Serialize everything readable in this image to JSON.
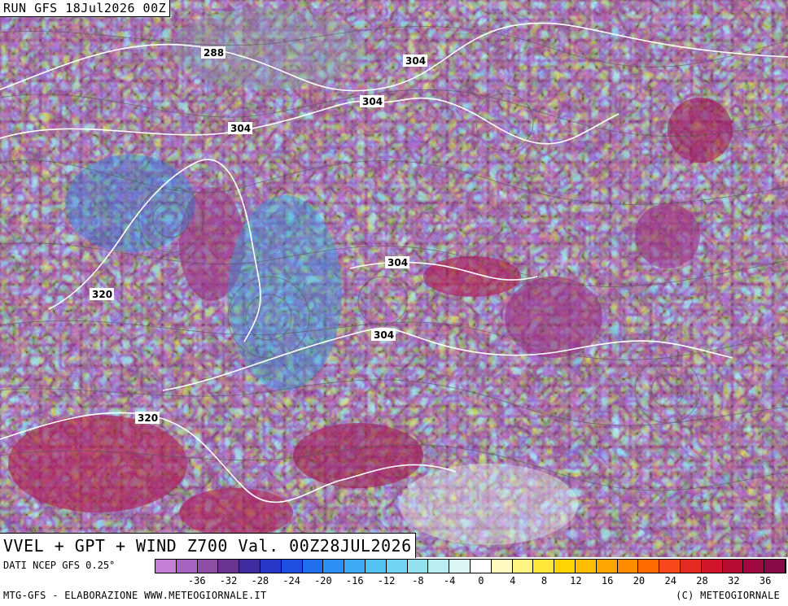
{
  "header": {
    "run": "RUN GFS 18Jul2026 00Z"
  },
  "subtitle": "VVEL + GPT + WIND Z700 Val. 00Z28JUL2026",
  "footer": {
    "source": "DATI NCEP GFS 0.25°",
    "credit": "MTG-GFS - ELABORAZIONE WWW.METEOGIORNALE.IT",
    "copyright": "(C) METEOGIORNALE"
  },
  "contour_labels": [
    "288",
    "304",
    "304",
    "304",
    "304",
    "304",
    "320",
    "320"
  ],
  "colorbar": {
    "colors": [
      "#c47fd4",
      "#a863c0",
      "#8e4ea8",
      "#6a3590",
      "#3e2ca0",
      "#2a36c8",
      "#1e4fe0",
      "#1f6ff0",
      "#2b8ff5",
      "#3ea9f5",
      "#52c2f2",
      "#6fd5f0",
      "#92e3ef",
      "#b8eef2",
      "#dcf6f5",
      "#ffffff",
      "#fffbc0",
      "#fff480",
      "#ffe83a",
      "#ffd400",
      "#ffbf00",
      "#ffa500",
      "#ff8a00",
      "#ff6a00",
      "#f64818",
      "#e42a20",
      "#d0142a",
      "#b80b32",
      "#a00840",
      "#8a0a48"
    ],
    "tick_labels": [
      "-36",
      "-32",
      "-28",
      "-24",
      "-20",
      "-16",
      "-12",
      "-8",
      "-4",
      "0",
      "4",
      "8",
      "12",
      "16",
      "20",
      "24",
      "28",
      "32",
      "36"
    ]
  }
}
